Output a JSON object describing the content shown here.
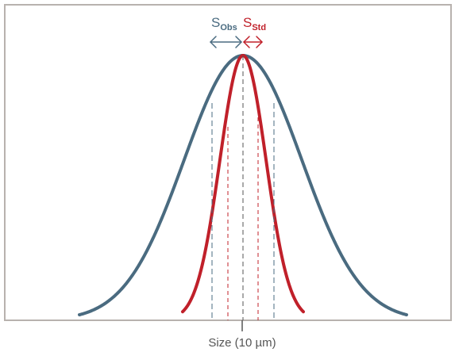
{
  "x_axis": {
    "label": "Size (10 µm)"
  },
  "labels": {
    "observed": {
      "main": "S",
      "subscript": "Obs"
    },
    "standard": {
      "main": "S",
      "subscript": "Std"
    }
  },
  "curves": {
    "observed": {
      "color": "#4a6b80",
      "shape": "wide gaussian"
    },
    "standard": {
      "color": "#c0202a",
      "shape": "narrow gaussian"
    }
  },
  "colors": {
    "frame": "#b8b2ae",
    "observed": "#4a6b80",
    "standard": "#c0202a",
    "center_line": "#555555",
    "axis_label": "#555555"
  }
}
